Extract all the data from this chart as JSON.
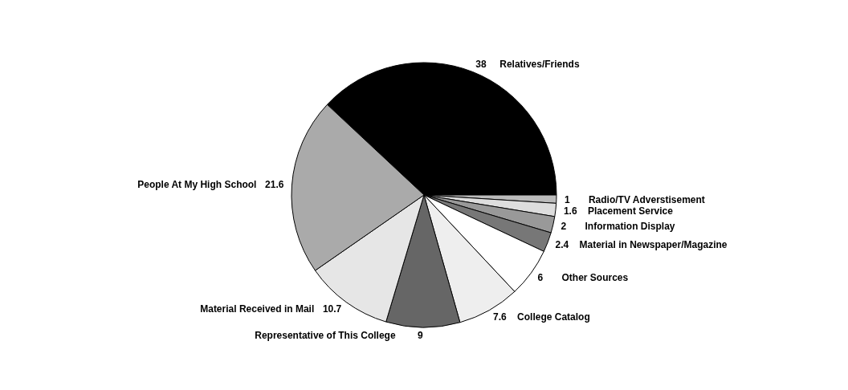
{
  "chart_data": {
    "type": "pie",
    "categories": [
      "Relatives/Friends",
      "Radio/TV Adverstisement",
      "Placement Service",
      "Information Display",
      "Material in Newspaper/Magazine",
      "Other Sources",
      "College Catalog",
      "Representative of This College",
      "Material Received in Mail",
      "People At My High School"
    ],
    "values": [
      38,
      1,
      1.6,
      2,
      2.4,
      6,
      7.6,
      9,
      10.7,
      21.6
    ],
    "colors": [
      "#000000",
      "#bbbbbb",
      "#dddddd",
      "#999999",
      "#777777",
      "#ffffff",
      "#eeeeee",
      "#666666",
      "#e6e6e6",
      "#aaaaaa"
    ],
    "data_labels": true,
    "legend": false
  }
}
